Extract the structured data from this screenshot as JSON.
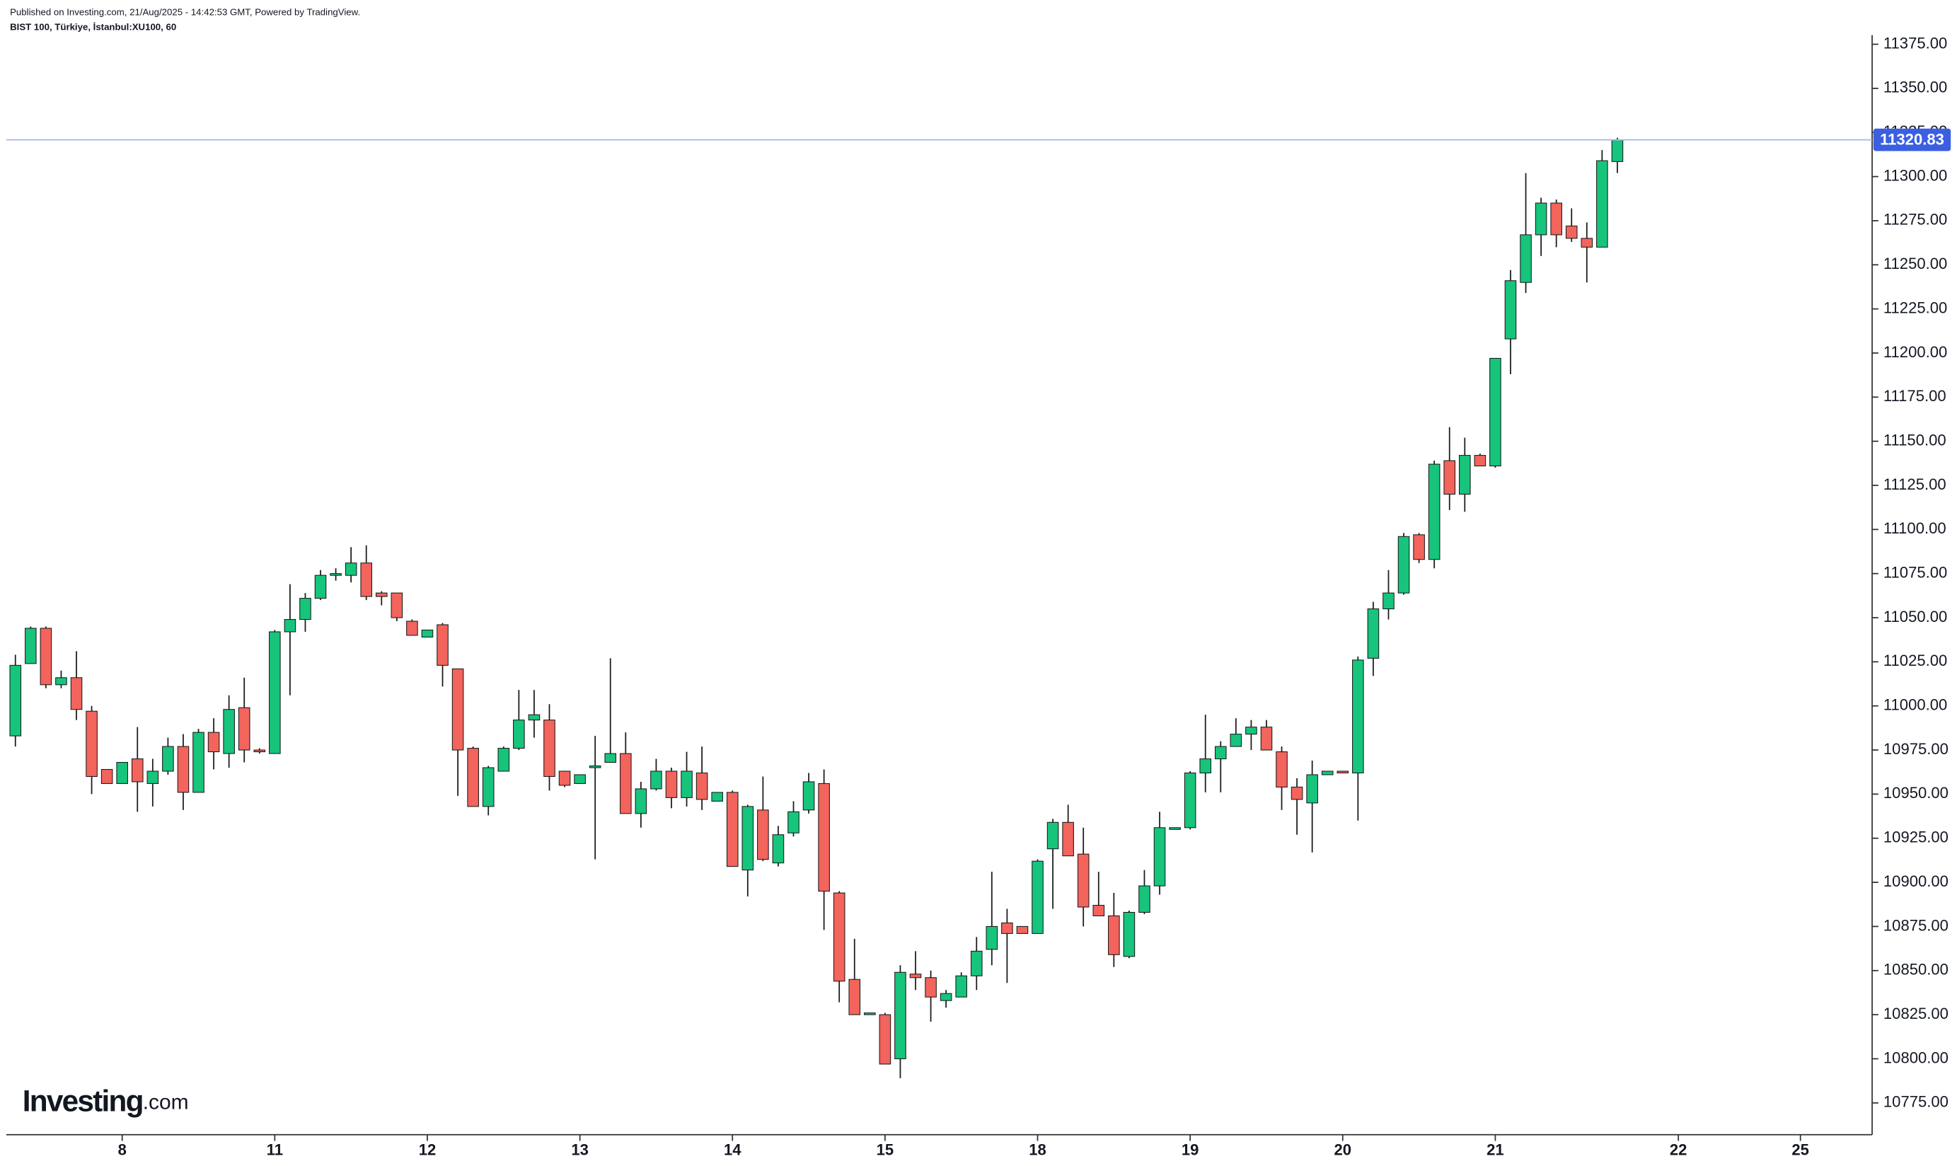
{
  "chart_data": {
    "type": "candlestick",
    "title": "Published on Investing.com, 21/Aug/2025 - 14:42:53 GMT, Powered by TradingView.",
    "subtitle": "BIST 100, Türkiye, İstanbul:XU100, 60",
    "logo": "Investing",
    "logo_suffix": ".com",
    "up_color": "#16c47c",
    "down_color": "#f2645c",
    "price_line_color": "#a9b1f2",
    "price_label_color": "#3a5fe0",
    "xlim": [
      -0.6,
      121.7
    ],
    "ylim": [
      10757,
      11400
    ],
    "xticks": [
      {
        "value": 7,
        "label": "8"
      },
      {
        "value": 17,
        "label": "11"
      },
      {
        "value": 27,
        "label": "12"
      },
      {
        "value": 37,
        "label": "13"
      },
      {
        "value": 47,
        "label": "14"
      },
      {
        "value": 57,
        "label": "15"
      },
      {
        "value": 67,
        "label": "18"
      },
      {
        "value": 77,
        "label": "19"
      },
      {
        "value": 87,
        "label": "20"
      },
      {
        "value": 97,
        "label": "21"
      },
      {
        "value": 109,
        "label": "22"
      },
      {
        "value": 117,
        "label": "25"
      }
    ],
    "yticks": [
      {
        "value": 10775,
        "label": "10775.00"
      },
      {
        "value": 10800,
        "label": "10800.00"
      },
      {
        "value": 10825,
        "label": "10825.00"
      },
      {
        "value": 10850,
        "label": "10850.00"
      },
      {
        "value": 10875,
        "label": "10875.00"
      },
      {
        "value": 10900,
        "label": "10900.00"
      },
      {
        "value": 10925,
        "label": "10925.00"
      },
      {
        "value": 10950,
        "label": "10950.00"
      },
      {
        "value": 10975,
        "label": "10975.00"
      },
      {
        "value": 11000,
        "label": "11000.00"
      },
      {
        "value": 11025,
        "label": "11025.00"
      },
      {
        "value": 11050,
        "label": "11050.00"
      },
      {
        "value": 11075,
        "label": "11075.00"
      },
      {
        "value": 11100,
        "label": "11100.00"
      },
      {
        "value": 11125,
        "label": "11125.00"
      },
      {
        "value": 11150,
        "label": "11150.00"
      },
      {
        "value": 11175,
        "label": "11175.00"
      },
      {
        "value": 11200,
        "label": "11200.00"
      },
      {
        "value": 11225,
        "label": "11225.00"
      },
      {
        "value": 11250,
        "label": "11250.00"
      },
      {
        "value": 11275,
        "label": "11275.00"
      },
      {
        "value": 11300,
        "label": "11300.00"
      },
      {
        "value": 11325,
        "label": "11325.00"
      },
      {
        "value": 11350,
        "label": "11350.00"
      },
      {
        "value": 11375,
        "label": "11375.00"
      }
    ],
    "open": [
      10983,
      11024,
      11044,
      11012,
      11016,
      10997,
      10964,
      10956,
      10970,
      10956,
      10963,
      10977,
      10951,
      10985,
      10973,
      10999,
      10975,
      10973,
      11042,
      11049,
      11061,
      11074,
      11074,
      11081,
      11064,
      11064,
      11048,
      11039,
      11046,
      11021,
      10976,
      10943,
      10963,
      10976,
      10992,
      10992,
      10963,
      10956,
      10965,
      10968,
      10973,
      10939,
      10953,
      10963,
      10948,
      10962,
      10946,
      10951,
      10907,
      10941,
      10911,
      10928,
      10941,
      10956,
      10894,
      10845,
      10825,
      10825,
      10800,
      10848,
      10846,
      10833,
      10835,
      10847,
      10862,
      10877,
      10875,
      10871,
      10919,
      10934,
      10916,
      10887,
      10881,
      10858,
      10883,
      10898,
      10930,
      10931,
      10962,
      10970,
      10977,
      10984,
      10988,
      10974,
      10954,
      10945,
      10961,
      10963,
      10962,
      11027,
      11055,
      11064,
      11097,
      11083,
      11139,
      11120,
      11142,
      11136,
      11208,
      11240,
      11267,
      11285,
      11272,
      11265,
      11260,
      11308.5
    ],
    "high": [
      11029,
      11045,
      11045,
      11020,
      11031,
      11000,
      10964,
      10968,
      10988,
      10970,
      10982,
      10984,
      10987,
      10993,
      11006,
      11016,
      10976,
      11043,
      11069,
      11064,
      11077,
      11078,
      11090,
      11091,
      11065,
      11064,
      11049,
      11043,
      11047,
      11021,
      10977,
      10966,
      10977,
      11009,
      11009,
      11001,
      10963,
      10961,
      10983,
      11027,
      10985,
      10957,
      10970,
      10965,
      10974,
      10977,
      10951,
      10952,
      10944,
      10960,
      10932,
      10946,
      10962,
      10964,
      10895,
      10868,
      10826,
      10826,
      10853,
      10861,
      10850,
      10839,
      10849,
      10869,
      10906,
      10885,
      10875,
      10913,
      10936,
      10944,
      10931,
      10906,
      10894,
      10884,
      10907,
      10940,
      10931,
      10963,
      10995,
      10980,
      10993,
      10992,
      10992,
      10977,
      10959,
      10969,
      10963,
      10963,
      11028,
      11059,
      11077,
      11098,
      11098,
      11139,
      11158,
      11152,
      11143,
      11197,
      11247,
      11302,
      11288,
      11287,
      11282,
      11274,
      11315,
      11322
    ],
    "low": [
      10977,
      11024,
      11010,
      11010,
      10992,
      10950,
      10956,
      10956,
      10940,
      10943,
      10961,
      10941,
      10951,
      10964,
      10965,
      10968,
      10973,
      10973,
      11006,
      11042,
      11060,
      11071,
      11070,
      11060,
      11057,
      11048,
      11040,
      11039,
      11011,
      10949,
      10943,
      10938,
      10963,
      10975,
      10982,
      10952,
      10954,
      10956,
      10913,
      10968,
      10939,
      10931,
      10952,
      10942,
      10943,
      10941,
      10946,
      10909,
      10892,
      10912,
      10909,
      10926,
      10939,
      10873,
      10832,
      10825,
      10825,
      10797,
      10789,
      10839,
      10821,
      10829,
      10835,
      10839,
      10853,
      10843,
      10871,
      10871,
      10885,
      10915,
      10875,
      10881,
      10852,
      10857,
      10882,
      10893,
      10930,
      10930,
      10951,
      10951,
      10977,
      10975,
      10975,
      10941,
      10927,
      10917,
      10961,
      10962,
      10935,
      11017,
      11049,
      11063,
      11081,
      11078,
      11111,
      11110,
      11136,
      11135,
      11188,
      11234,
      11255,
      11260,
      11263,
      11240,
      11260,
      11302
    ],
    "close": [
      11023,
      11044,
      11012,
      11016,
      10998,
      10960,
      10956,
      10968,
      10957,
      10963,
      10977,
      10951,
      10985,
      10974,
      10998,
      10975,
      10974,
      11042,
      11049,
      11061,
      11074,
      11075,
      11081,
      11062,
      11062,
      11050,
      11040,
      11043,
      11023,
      10975,
      10943,
      10965,
      10976,
      10992,
      10995,
      10960,
      10955,
      10961,
      10966,
      10973,
      10939,
      10953,
      10963,
      10948,
      10963,
      10947,
      10951,
      10909,
      10943,
      10913,
      10927,
      10940,
      10957,
      10895,
      10844,
      10825,
      10826,
      10797,
      10849,
      10846,
      10835,
      10837,
      10847,
      10861,
      10875,
      10871,
      10871,
      10912,
      10934,
      10915,
      10886,
      10881,
      10859,
      10883,
      10898,
      10931,
      10931,
      10962,
      10970,
      10977,
      10984,
      10988,
      10975,
      10954,
      10947,
      10961,
      10963,
      10962,
      11026,
      11055,
      11064,
      11096,
      11083,
      11137,
      11120,
      11142,
      11136,
      11197,
      11241,
      11267,
      11285,
      11267,
      11265,
      11260,
      11309,
      11320.83
    ]
  }
}
